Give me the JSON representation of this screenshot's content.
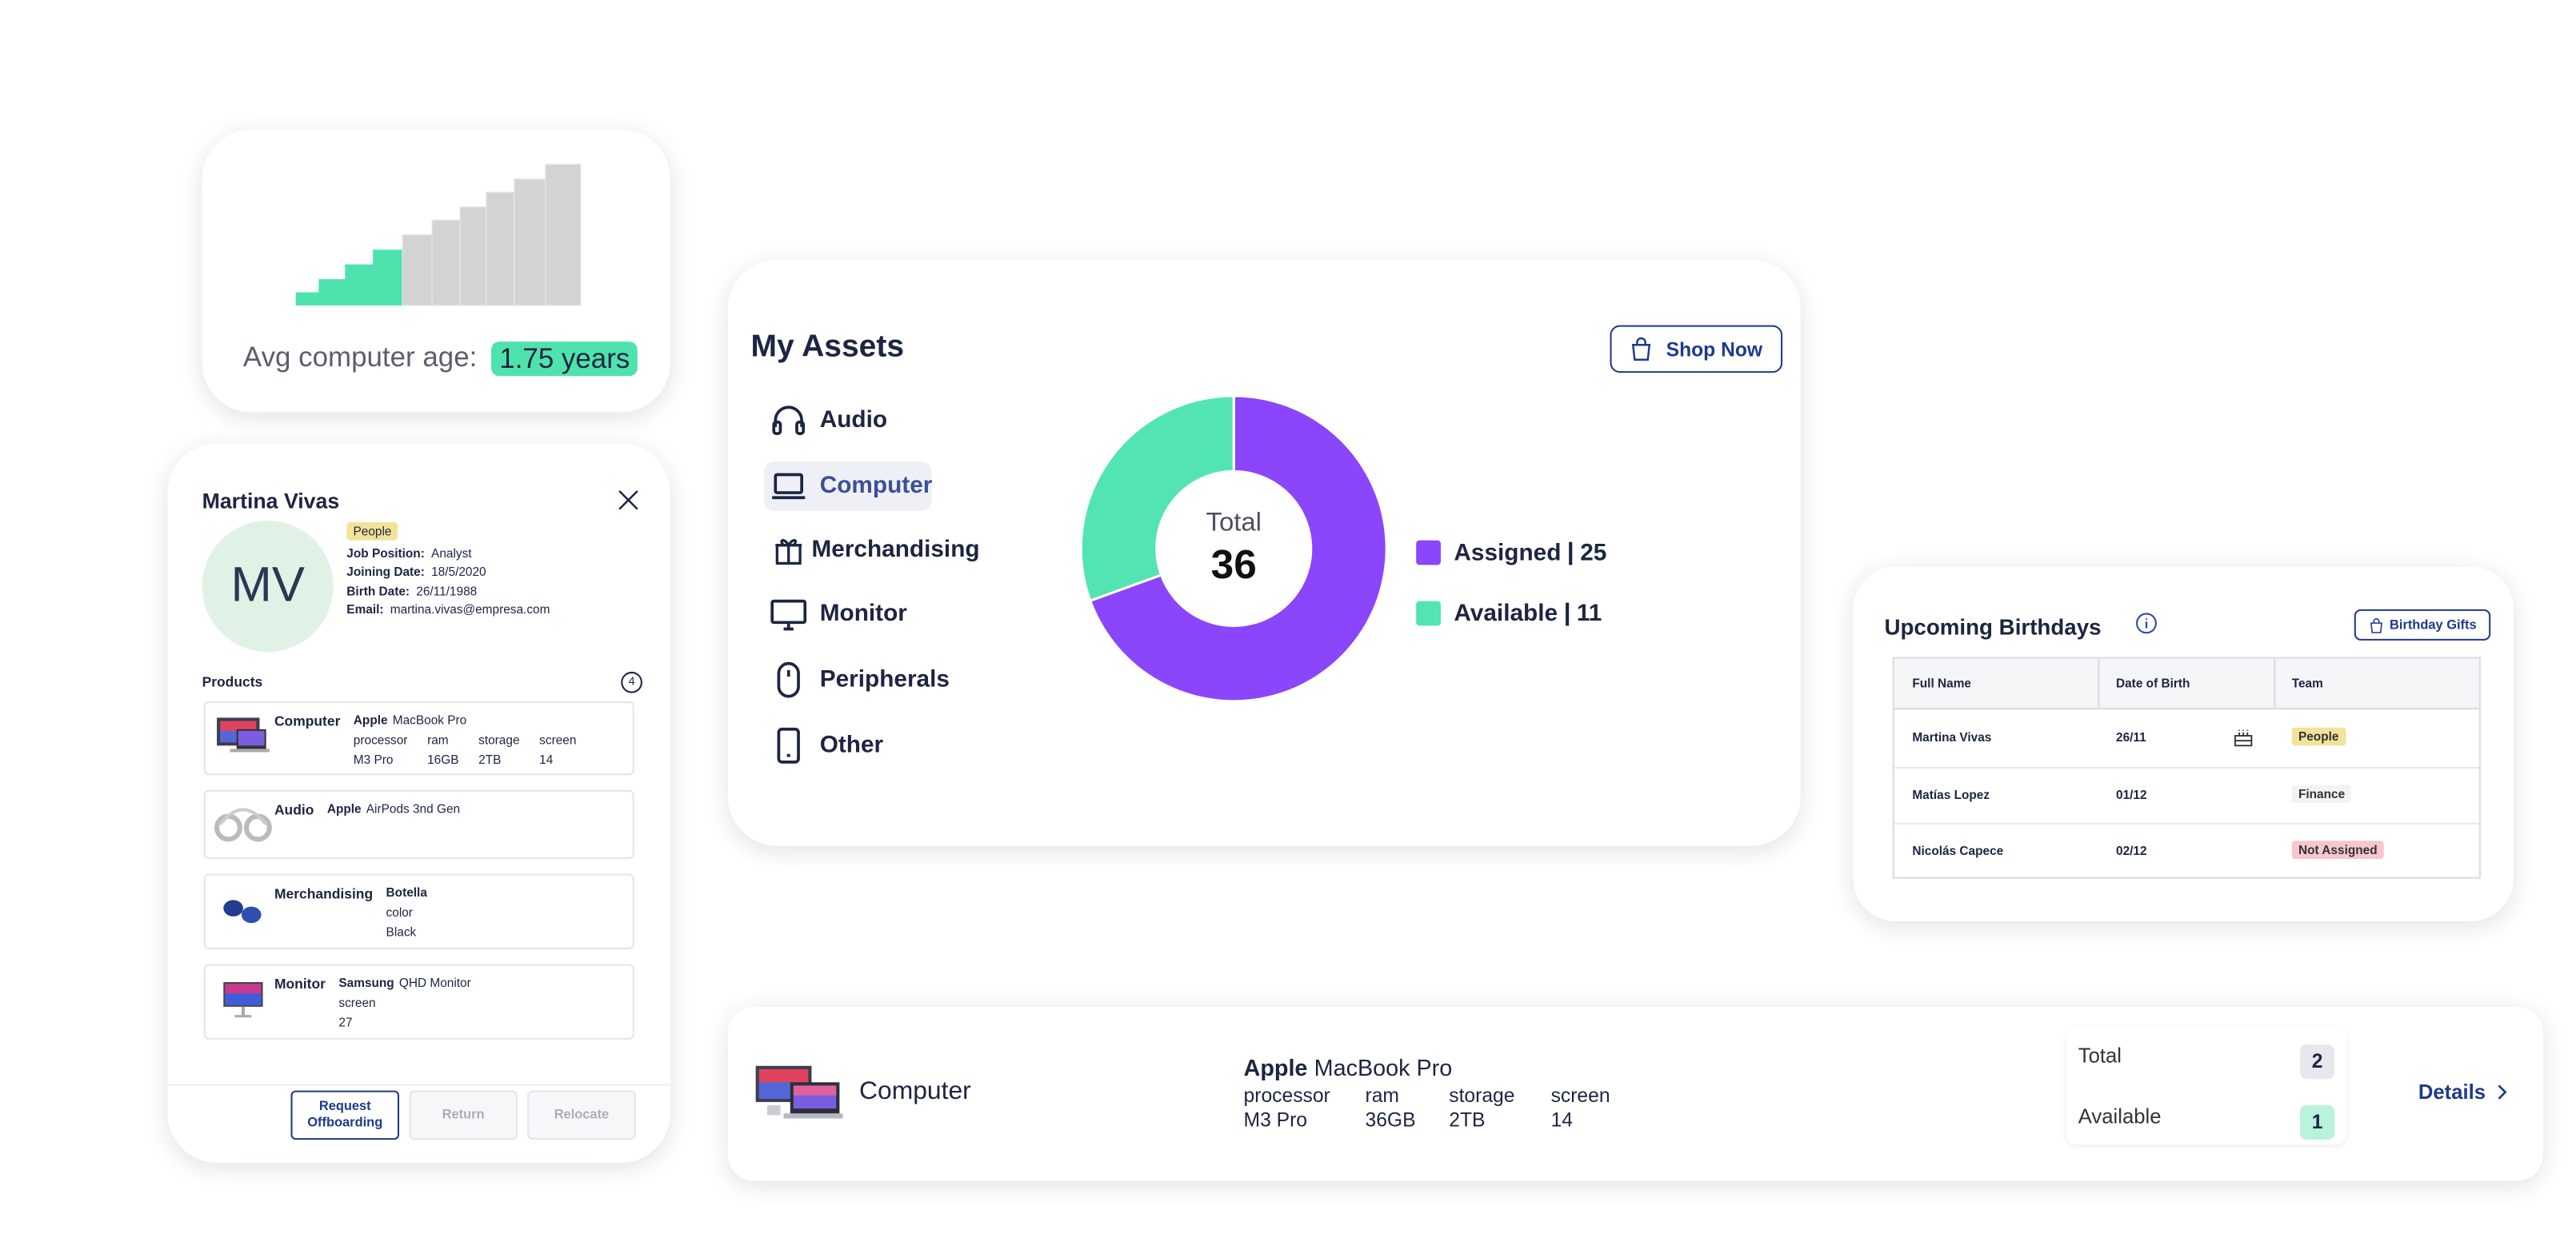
{
  "age_card": {
    "label": "Avg computer age:",
    "value": "1.75 years"
  },
  "employee": {
    "name": "Martina Vivas",
    "initials": "MV",
    "team": "People",
    "fields": [
      {
        "label": "Job Position:",
        "value": "Analyst"
      },
      {
        "label": "Joining Date:",
        "value": "18/5/2020"
      },
      {
        "label": "Birth Date:",
        "value": "26/11/1988"
      },
      {
        "label": "Email:",
        "value": "martina.vivas@empresa.com"
      }
    ],
    "products_label": "Products",
    "products_count": 4,
    "products": [
      {
        "category": "Computer",
        "brand": "Apple",
        "model": "MacBook Pro",
        "specs": [
          {
            "label": "processor",
            "value": "M3 Pro"
          },
          {
            "label": "ram",
            "value": "16GB"
          },
          {
            "label": "storage",
            "value": "2TB"
          },
          {
            "label": "screen",
            "value": "14"
          }
        ]
      },
      {
        "category": "Audio",
        "brand": "Apple",
        "model": "AirPods 3nd Gen"
      },
      {
        "category": "Merchandising",
        "brand": "Botella",
        "specs": [
          {
            "label": "color",
            "value": "Black"
          }
        ]
      },
      {
        "category": "Monitor",
        "brand": "Samsung",
        "model": "QHD Monitor",
        "specs": [
          {
            "label": "screen",
            "value": "27"
          }
        ]
      }
    ],
    "buttons": [
      "Request Offboarding",
      "Return",
      "Relocate"
    ]
  },
  "assets": {
    "title": "My Assets",
    "shop_button": "Shop Now",
    "menu": [
      "Audio",
      "Computer",
      "Merchandising",
      "Monitor",
      "Peripherals",
      "Other"
    ],
    "selected_index": 1
  },
  "chart_data": {
    "type": "donut",
    "categories": [
      "Assigned",
      "Available"
    ],
    "values": [
      25,
      11
    ],
    "colors": [
      "#8b45fb",
      "#52e5b1"
    ],
    "center_label": "Total",
    "center_value": 36
  },
  "birthdays": {
    "title": "Upcoming Birthdays",
    "button": "Birthday Gifts",
    "columns": [
      "Full Name",
      "Date of Birth",
      "Team"
    ],
    "rows": [
      [
        "Martina Vivas",
        "26/11",
        "People"
      ],
      [
        "Matías Lopez",
        "01/12",
        "Finance"
      ],
      [
        "Nicolás Capece",
        "02/12",
        "Not Assigned"
      ]
    ]
  },
  "product_card": {
    "category": "Computer",
    "brand": "Apple",
    "model": "MacBook Pro",
    "specs": [
      {
        "label": "processor",
        "value": "M3 Pro"
      },
      {
        "label": "ram",
        "value": "36GB"
      },
      {
        "label": "storage",
        "value": "2TB"
      },
      {
        "label": "screen",
        "value": "14"
      }
    ],
    "total_label": "Total",
    "total": 2,
    "available_label": "Available",
    "available": 1,
    "details": "Details"
  }
}
